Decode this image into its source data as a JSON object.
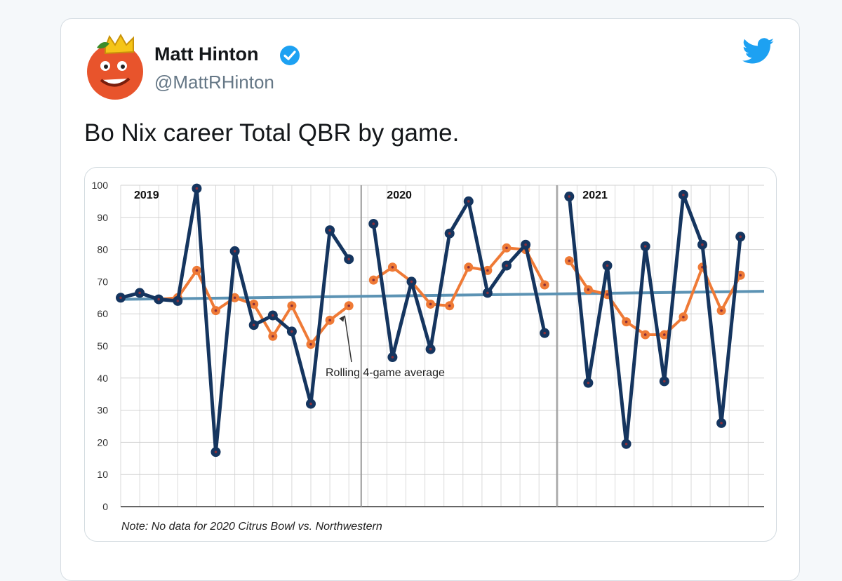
{
  "tweet": {
    "author_name": "Matt Hinton",
    "handle": "@MattRHinton",
    "text": "Bo Nix career Total QBR by game."
  },
  "icons": {
    "verified": "verified-badge-icon",
    "platform": "twitter-bird-icon"
  },
  "colors": {
    "qbr_line": "#15355f",
    "rolling_avg": "#ef7a36",
    "trend_line": "#5c93b4",
    "verified": "#1da1f2",
    "twitter": "#1da1f2"
  },
  "chart_data": {
    "type": "line",
    "title": "",
    "xlabel": "",
    "ylabel": "",
    "ylim": [
      0,
      100
    ],
    "yticks": [
      0,
      10,
      20,
      30,
      40,
      50,
      60,
      70,
      80,
      90,
      100
    ],
    "grid": true,
    "segments": [
      "2019",
      "2020",
      "2021"
    ],
    "segment_game_counts": [
      13,
      10,
      10
    ],
    "series": [
      {
        "name": "Total QBR",
        "values": [
          65,
          66.5,
          64.5,
          64,
          99,
          17,
          79.5,
          56.5,
          59.5,
          54.5,
          32,
          86,
          77,
          88,
          46.5,
          70,
          49,
          85,
          95,
          66.5,
          75,
          81.5,
          54,
          96.5,
          38.5,
          75,
          19.5,
          81,
          39,
          97,
          81.5,
          26,
          84
        ]
      },
      {
        "name": "Rolling 4-game average",
        "values": [
          65,
          66.5,
          64.5,
          65,
          73.5,
          61,
          65,
          63,
          53,
          62.5,
          50.5,
          58,
          62.5,
          70.5,
          74.5,
          70,
          63,
          62.5,
          74.5,
          73.5,
          80.5,
          80,
          69,
          76.5,
          67.5,
          66,
          57.5,
          53.5,
          53.5,
          59,
          74.5,
          61,
          72
        ]
      },
      {
        "name": "Trend",
        "values": [
          64.5,
          67
        ]
      }
    ],
    "annotations": [
      "Rolling 4-game average"
    ],
    "note": "Note: No data for 2020 Citrus Bowl vs. Northwestern"
  }
}
